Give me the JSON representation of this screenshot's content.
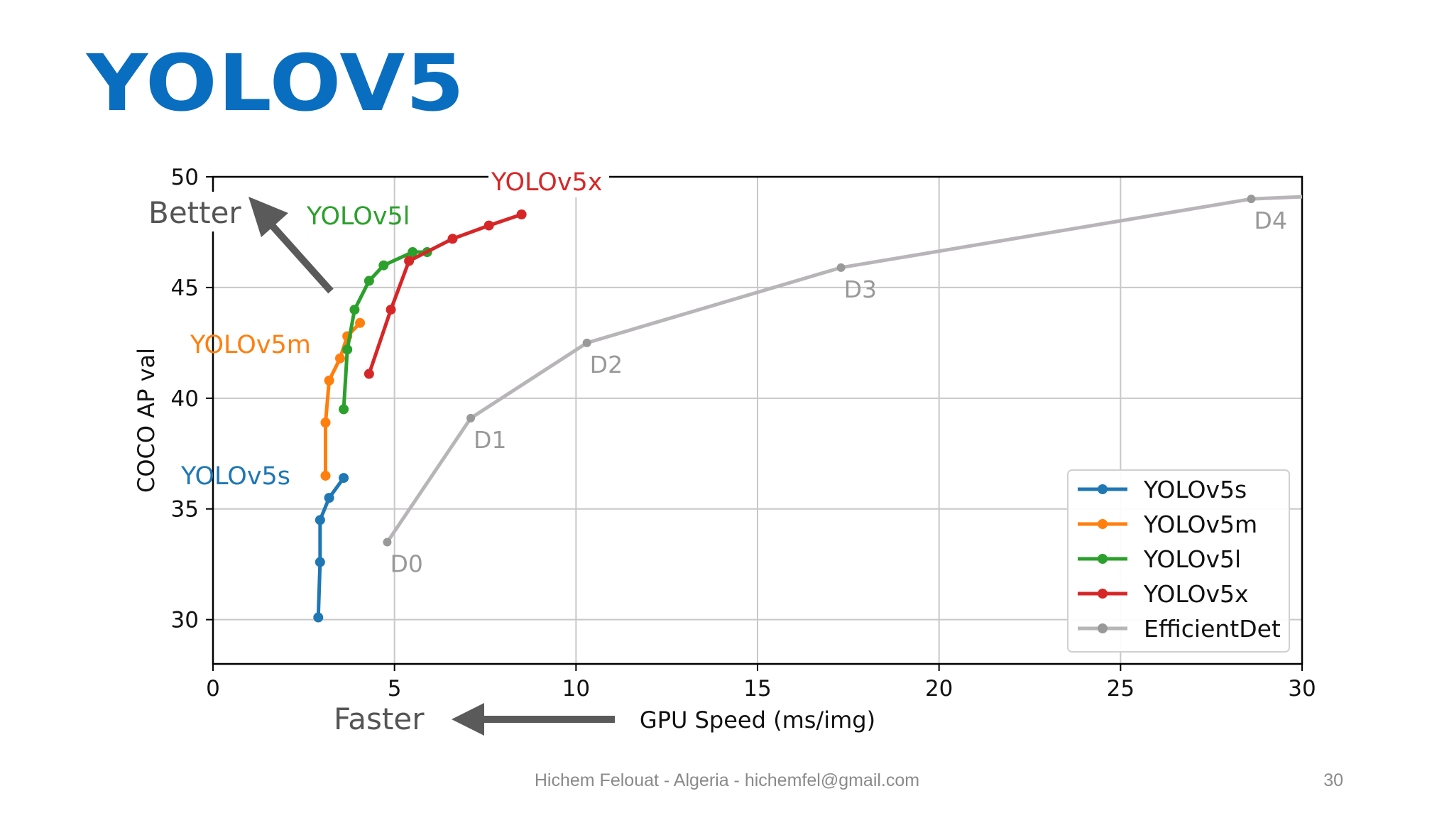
{
  "slide": {
    "title": "YOLOV5",
    "footer": "Hichem Felouat - Algeria - hichemfel@gmail.com",
    "page_number": "30",
    "title_color": "#0a6ec0"
  },
  "chart_data": {
    "type": "line",
    "title": "",
    "xlabel": "GPU Speed (ms/img)",
    "ylabel": "COCO AP val",
    "xlim": [
      0,
      30
    ],
    "ylim": [
      28,
      50
    ],
    "xticks": [
      0,
      5,
      10,
      15,
      20,
      25,
      30
    ],
    "yticks": [
      30,
      35,
      40,
      45,
      50
    ],
    "grid": true,
    "legend_position": "bottom-right",
    "series": [
      {
        "name": "YOLOv5s",
        "color": "#1f77b4",
        "label": "YOLOv5s",
        "x": [
          2.9,
          2.95,
          2.95,
          3.2,
          3.6
        ],
        "y": [
          30.1,
          32.6,
          34.5,
          35.5,
          36.4
        ]
      },
      {
        "name": "YOLOv5m",
        "color": "#ff7f0e",
        "label": "YOLOv5m",
        "x": [
          3.1,
          3.1,
          3.2,
          3.5,
          3.7,
          4.05
        ],
        "y": [
          36.5,
          38.9,
          40.8,
          41.8,
          42.8,
          43.4
        ]
      },
      {
        "name": "YOLOv5l",
        "color": "#2ca02c",
        "label": "YOLOv5l",
        "x": [
          3.6,
          3.7,
          3.9,
          4.3,
          4.7,
          5.5,
          5.9
        ],
        "y": [
          39.5,
          42.2,
          44.0,
          45.3,
          46.0,
          46.6,
          46.6
        ]
      },
      {
        "name": "YOLOv5x",
        "color": "#d62728",
        "label": "YOLOv5x",
        "x": [
          4.3,
          4.9,
          5.4,
          6.6,
          7.6,
          8.5
        ],
        "y": [
          41.1,
          44.0,
          46.2,
          47.2,
          47.8,
          48.3
        ]
      },
      {
        "name": "EfficientDet",
        "color": "#b8b5b8",
        "label": "",
        "x": [
          4.8,
          7.1,
          10.3,
          17.3,
          28.6,
          30.0
        ],
        "y": [
          33.5,
          39.1,
          42.5,
          45.9,
          49.0,
          49.1
        ],
        "point_labels": [
          "D0",
          "D1",
          "D2",
          "D3",
          "D4",
          ""
        ]
      }
    ],
    "annotations": {
      "better": "Better",
      "faster": "Faster"
    }
  }
}
